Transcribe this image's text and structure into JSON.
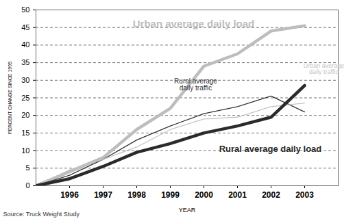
{
  "chart_data": {
    "type": "line",
    "x_label": "YEAR",
    "y_label": "PERCENT CHANGE SINCE 1995",
    "source": "Source: Truck Weight Study",
    "x": [
      1995,
      1996,
      1997,
      1998,
      1999,
      2000,
      2001,
      2002,
      2003
    ],
    "series": [
      {
        "name": "Urban average daily load",
        "color": "#bdbdbd",
        "values": [
          0,
          4,
          8,
          16,
          22,
          34,
          37.5,
          44,
          45.5
        ]
      },
      {
        "name": "Rural average daily traffic",
        "color": "#333333",
        "values": [
          0,
          3,
          7.5,
          13,
          17,
          20.5,
          22.5,
          25.5,
          21
        ]
      },
      {
        "name": "Urban average daily traffic",
        "color": "#c4c4c4",
        "values": [
          0,
          4.5,
          7.5,
          11,
          16,
          19,
          19.5,
          22.5,
          23.5
        ]
      },
      {
        "name": "Rural average daily load",
        "color": "#2b2b2b",
        "values": [
          0,
          2,
          5.5,
          9.5,
          12,
          15,
          17,
          19.5,
          28.5
        ]
      }
    ],
    "xlim": [
      1995,
      2004
    ],
    "xticks": [
      1996,
      1997,
      1998,
      1999,
      2000,
      2001,
      2002,
      2003
    ],
    "ylim": [
      0,
      50
    ],
    "yticks": [
      0,
      5,
      10,
      15,
      20,
      25,
      30,
      35,
      40,
      45,
      50
    ],
    "grid": true
  }
}
